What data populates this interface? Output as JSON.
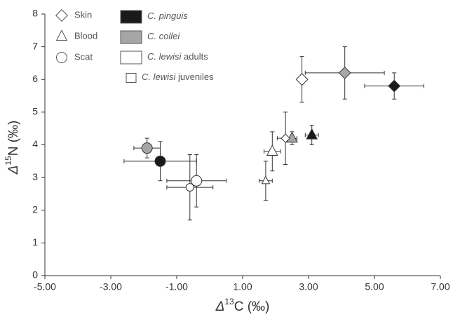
{
  "chart_data": {
    "type": "scatter",
    "xlabel": {
      "symbol": "Δ",
      "superscript": "13",
      "text": "C (‰)"
    },
    "ylabel": {
      "symbol": "Δ",
      "superscript": "15",
      "text": "N (‰)"
    },
    "xlim": [
      -5,
      7
    ],
    "xticks": [
      {
        "value": -5,
        "label": "-5.00"
      },
      {
        "value": -3,
        "label": "-3.00"
      },
      {
        "value": -1,
        "label": "-1.00"
      },
      {
        "value": 1,
        "label": "1.00"
      },
      {
        "value": 3,
        "label": "3.00"
      },
      {
        "value": 5,
        "label": "5.00"
      },
      {
        "value": 7,
        "label": "7.00"
      }
    ],
    "ylim": [
      0,
      8
    ],
    "yticks": [
      0,
      1,
      2,
      3,
      4,
      5,
      6,
      7,
      8
    ],
    "markers": [
      {
        "name": "Skin",
        "shape": "diamond"
      },
      {
        "name": "Blood",
        "shape": "triangle"
      },
      {
        "name": "Scat",
        "shape": "circle"
      }
    ],
    "series": [
      {
        "name": "C. pinguis",
        "color": "#1a1a1a",
        "marker_size": "large",
        "x": [
          5.6,
          3.1,
          -1.5
        ],
        "y": [
          5.8,
          4.3,
          3.5
        ],
        "xerr": [
          0.9,
          0.2,
          1.1
        ],
        "yerr": [
          0.4,
          0.3,
          0.6
        ]
      },
      {
        "name": "C. collei",
        "color": "#a6a6a6",
        "marker_size": "large",
        "x": [
          4.1,
          2.5,
          -1.9
        ],
        "y": [
          6.2,
          4.2,
          3.9
        ],
        "xerr": [
          1.2,
          0.15,
          0.4
        ],
        "yerr": [
          0.8,
          0.2,
          0.3
        ]
      },
      {
        "name": "C. lewisi",
        "qualifier": "adults",
        "color": "#ffffff",
        "marker_size": "large",
        "x": [
          2.8,
          1.9,
          -0.4
        ],
        "y": [
          6.0,
          3.8,
          2.9
        ],
        "xerr": [
          0.1,
          0.25,
          0.9
        ],
        "yerr": [
          0.7,
          0.6,
          0.8
        ]
      },
      {
        "name": "C. lewisi",
        "qualifier": "juveniles",
        "color": "#ffffff",
        "marker_size": "small",
        "x": [
          2.3,
          1.7,
          -0.6
        ],
        "y": [
          4.2,
          2.9,
          2.7
        ],
        "xerr": [
          0.25,
          0.2,
          0.7
        ],
        "yerr": [
          0.8,
          0.6,
          1.0
        ]
      }
    ]
  }
}
